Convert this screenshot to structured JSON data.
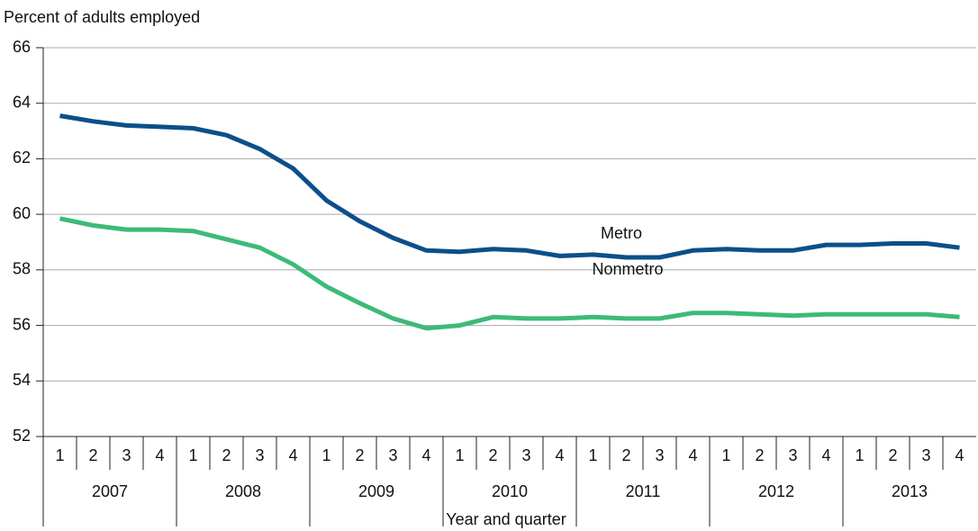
{
  "chart_data": {
    "type": "line",
    "y_axis_label": "Percent of adults employed",
    "x_axis_label": "Year and quarter",
    "categories": [
      "1",
      "2",
      "3",
      "4",
      "1",
      "2",
      "3",
      "4",
      "1",
      "2",
      "3",
      "4",
      "1",
      "2",
      "3",
      "4",
      "1",
      "2",
      "3",
      "4",
      "1",
      "2",
      "3",
      "4",
      "1",
      "2",
      "3",
      "4"
    ],
    "category_groups": [
      "2007",
      "2008",
      "2009",
      "2010",
      "2011",
      "2012",
      "2013"
    ],
    "series": [
      {
        "name": "Metro",
        "color": "#0b4f8a",
        "values": [
          63.55,
          63.35,
          63.2,
          63.15,
          63.1,
          62.85,
          62.35,
          61.65,
          60.5,
          59.75,
          59.15,
          58.7,
          58.65,
          58.75,
          58.7,
          58.5,
          58.55,
          58.45,
          58.45,
          58.7,
          58.75,
          58.7,
          58.7,
          58.9,
          58.9,
          58.95,
          58.95,
          58.8
        ]
      },
      {
        "name": "Nonmetro",
        "color": "#3dba78",
        "values": [
          59.85,
          59.6,
          59.45,
          59.45,
          59.4,
          59.1,
          58.8,
          58.2,
          57.4,
          56.8,
          56.25,
          55.9,
          56.0,
          56.3,
          56.25,
          56.25,
          56.3,
          56.25,
          56.25,
          56.45,
          56.45,
          56.4,
          56.35,
          56.4,
          56.4,
          56.4,
          56.4,
          56.3
        ]
      }
    ],
    "ylim": [
      52,
      66
    ],
    "yticks": [
      52,
      54,
      56,
      58,
      60,
      62,
      64,
      66
    ],
    "grid": true
  }
}
